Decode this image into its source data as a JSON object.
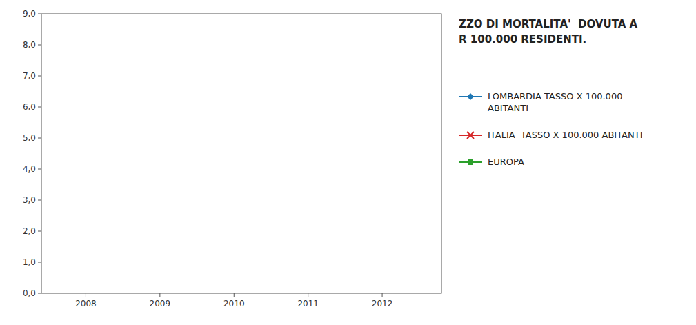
{
  "chart_data": {
    "type": "line",
    "title": "ZZO DI MORTALITA'  DOVUTA A\nR 100.000 RESIDENTI.",
    "x": [
      2008,
      2009,
      2010,
      2011,
      2012
    ],
    "xlim": [
      2007.4,
      2012.8
    ],
    "xticks": [
      2008,
      2009,
      2010,
      2011,
      2012
    ],
    "ylim": [
      0.0,
      9.0
    ],
    "yticks": [
      {
        "value": 0.0,
        "label": "0,0"
      },
      {
        "value": 1.0,
        "label": "1,0"
      },
      {
        "value": 2.0,
        "label": "2,0"
      },
      {
        "value": 3.0,
        "label": "3,0"
      },
      {
        "value": 4.0,
        "label": "4,0"
      },
      {
        "value": 5.0,
        "label": "5,0"
      },
      {
        "value": 6.0,
        "label": "6,0"
      },
      {
        "value": 7.0,
        "label": "7,0"
      },
      {
        "value": 8.0,
        "label": "8,0"
      },
      {
        "value": 9.0,
        "label": "9,0"
      }
    ],
    "grid": false,
    "legend": "right",
    "series": [
      {
        "name": "LOMBARDIA TASSO X 100.000\nABITANTI",
        "marker": "diamond",
        "line_style": "solid",
        "values": [
          null,
          null,
          null,
          null,
          null
        ]
      },
      {
        "name": "ITALIA  TASSO X 100.000 ABITANTI",
        "marker": "x",
        "line_style": "solid",
        "values": [
          null,
          null,
          null,
          null,
          null
        ]
      },
      {
        "name": "EUROPA",
        "marker": "square",
        "line_style": "solid",
        "values": [
          null,
          null,
          null,
          null,
          null
        ]
      }
    ]
  }
}
